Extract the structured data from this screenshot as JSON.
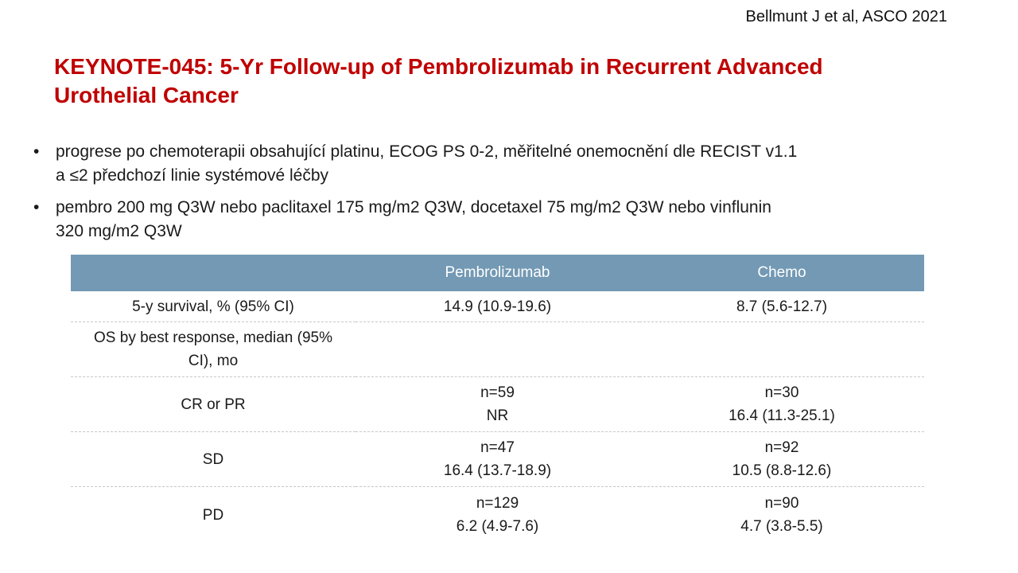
{
  "citation": "Bellmunt J et al, ASCO 2021",
  "title": {
    "line1": "KEYNOTE-045: 5-Yr Follow-up of Pembrolizumab in Recurrent Advanced",
    "line2": "Urothelial Cancer"
  },
  "bullets": [
    {
      "line1": "progrese po chemoterapii obsahující platinu, ECOG PS 0-2, měřitelné onemocnění dle RECIST v1.1",
      "line2": "a ≤2 předchozí linie systémové léčby"
    },
    {
      "line1": "pembro 200 mg Q3W nebo paclitaxel 175 mg/m2 Q3W, docetaxel 75 mg/m2 Q3W nebo vinflunin",
      "line2": "320 mg/m2 Q3W"
    }
  ],
  "bullet_symbol": "•",
  "table": {
    "headers": [
      "",
      "Pembrolizumab",
      "Chemo"
    ],
    "rows": [
      {
        "label": [
          "5-y survival, % (95% CI)"
        ],
        "pembro": [
          "14.9 (10.9-19.6)"
        ],
        "chemo": [
          "8.7 (5.6-12.7)"
        ]
      },
      {
        "label": [
          "OS by best response, median (95%",
          "CI), mo"
        ],
        "pembro": [],
        "chemo": []
      },
      {
        "label": [
          "CR or PR"
        ],
        "pembro": [
          "n=59",
          "NR"
        ],
        "chemo": [
          "n=30",
          "16.4 (11.3-25.1)"
        ]
      },
      {
        "label": [
          "SD"
        ],
        "pembro": [
          "n=47",
          "16.4 (13.7-18.9)"
        ],
        "chemo": [
          "n=92",
          "10.5 (8.8-12.6)"
        ]
      },
      {
        "label": [
          "PD"
        ],
        "pembro": [
          "n=129",
          "6.2 (4.9-7.6)"
        ],
        "chemo": [
          "n=90",
          "4.7 (3.8-5.5)"
        ]
      }
    ]
  },
  "colors": {
    "title": "#c00000",
    "table_header_bg": "#7399b4",
    "table_header_text": "#ffffff"
  }
}
